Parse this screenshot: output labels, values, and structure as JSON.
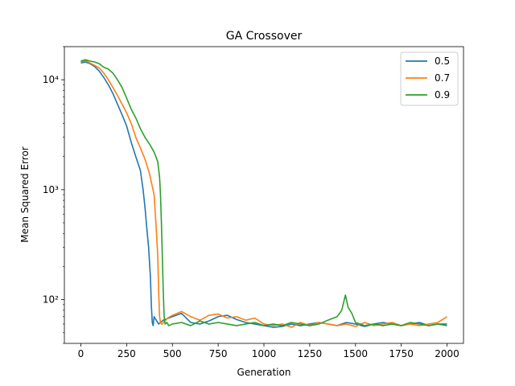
{
  "chart_data": {
    "type": "line",
    "title": "GA Crossover",
    "xlabel": "Generation",
    "ylabel": "Mean Squared Error",
    "xlim": [
      -90,
      2090
    ],
    "ylim": [
      40,
      20000
    ],
    "yscale": "log",
    "grid": false,
    "legend_position": "top-right",
    "x_ticks": [
      0,
      250,
      500,
      750,
      1000,
      1250,
      1500,
      1750,
      2000
    ],
    "x_tick_labels": [
      "0",
      "250",
      "500",
      "750",
      "1000",
      "1250",
      "1500",
      "1750",
      "2000"
    ],
    "y_ticks": [
      100,
      1000,
      10000
    ],
    "y_tick_labels": [
      "10²",
      "10³",
      "10⁴"
    ],
    "series": [
      {
        "name": "0.5",
        "color": "#1f77b4",
        "x": [
          0,
          25,
          50,
          75,
          100,
          125,
          150,
          175,
          200,
          225,
          250,
          275,
          300,
          325,
          340,
          350,
          360,
          370,
          380,
          385,
          390,
          395,
          400,
          425,
          450,
          500,
          550,
          600,
          650,
          700,
          750,
          800,
          850,
          900,
          950,
          1000,
          1050,
          1100,
          1150,
          1200,
          1250,
          1300,
          1350,
          1400,
          1450,
          1500,
          1550,
          1600,
          1650,
          1700,
          1750,
          1800,
          1850,
          1900,
          1950,
          2000
        ],
        "values": [
          14200,
          14500,
          14000,
          13200,
          12000,
          10500,
          9000,
          7500,
          6000,
          4800,
          3800,
          2700,
          2000,
          1500,
          1000,
          700,
          450,
          300,
          160,
          90,
          62,
          58,
          70,
          60,
          65,
          70,
          75,
          62,
          60,
          64,
          70,
          72,
          66,
          62,
          60,
          58,
          56,
          57,
          60,
          58,
          60,
          62,
          60,
          58,
          62,
          60,
          57,
          60,
          62,
          60,
          58,
          60,
          62,
          58,
          60,
          60
        ]
      },
      {
        "name": "0.7",
        "color": "#ff7f0e",
        "x": [
          0,
          25,
          50,
          75,
          100,
          125,
          150,
          175,
          200,
          225,
          250,
          275,
          300,
          325,
          350,
          375,
          400,
          410,
          420,
          425,
          430,
          435,
          440,
          445,
          450,
          475,
          500,
          550,
          600,
          650,
          700,
          750,
          800,
          850,
          900,
          950,
          1000,
          1050,
          1100,
          1150,
          1200,
          1250,
          1300,
          1350,
          1400,
          1450,
          1500,
          1550,
          1600,
          1650,
          1700,
          1750,
          1800,
          1850,
          1900,
          1950,
          2000
        ],
        "values": [
          14500,
          15000,
          14200,
          13500,
          12800,
          11500,
          10000,
          8500,
          7200,
          6000,
          5000,
          4000,
          3000,
          2400,
          1900,
          1400,
          900,
          500,
          250,
          120,
          70,
          62,
          60,
          60,
          62,
          68,
          72,
          78,
          70,
          65,
          72,
          74,
          68,
          70,
          65,
          68,
          60,
          58,
          60,
          56,
          62,
          58,
          62,
          60,
          58,
          60,
          57,
          62,
          58,
          60,
          62,
          58,
          60,
          58,
          60,
          62,
          70
        ]
      },
      {
        "name": "0.9",
        "color": "#2ca02c",
        "x": [
          0,
          25,
          50,
          75,
          100,
          125,
          150,
          175,
          200,
          225,
          250,
          275,
          300,
          325,
          350,
          375,
          400,
          420,
          430,
          435,
          440,
          445,
          450,
          455,
          460,
          470,
          480,
          500,
          550,
          600,
          650,
          700,
          750,
          800,
          850,
          900,
          950,
          1000,
          1050,
          1100,
          1150,
          1200,
          1250,
          1300,
          1350,
          1400,
          1425,
          1445,
          1460,
          1480,
          1500,
          1550,
          1600,
          1650,
          1700,
          1750,
          1800,
          1850,
          1900,
          1950,
          2000
        ],
        "values": [
          14800,
          15200,
          14800,
          14500,
          14000,
          13000,
          12500,
          11500,
          10000,
          8500,
          6800,
          5400,
          4500,
          3600,
          3000,
          2600,
          2200,
          1800,
          1300,
          900,
          500,
          250,
          120,
          70,
          60,
          62,
          58,
          60,
          62,
          58,
          64,
          60,
          62,
          60,
          58,
          60,
          62,
          58,
          60,
          58,
          62,
          60,
          58,
          60,
          65,
          70,
          80,
          110,
          85,
          75,
          62,
          58,
          60,
          58,
          60,
          58,
          62,
          60,
          58,
          60,
          58
        ]
      }
    ]
  }
}
